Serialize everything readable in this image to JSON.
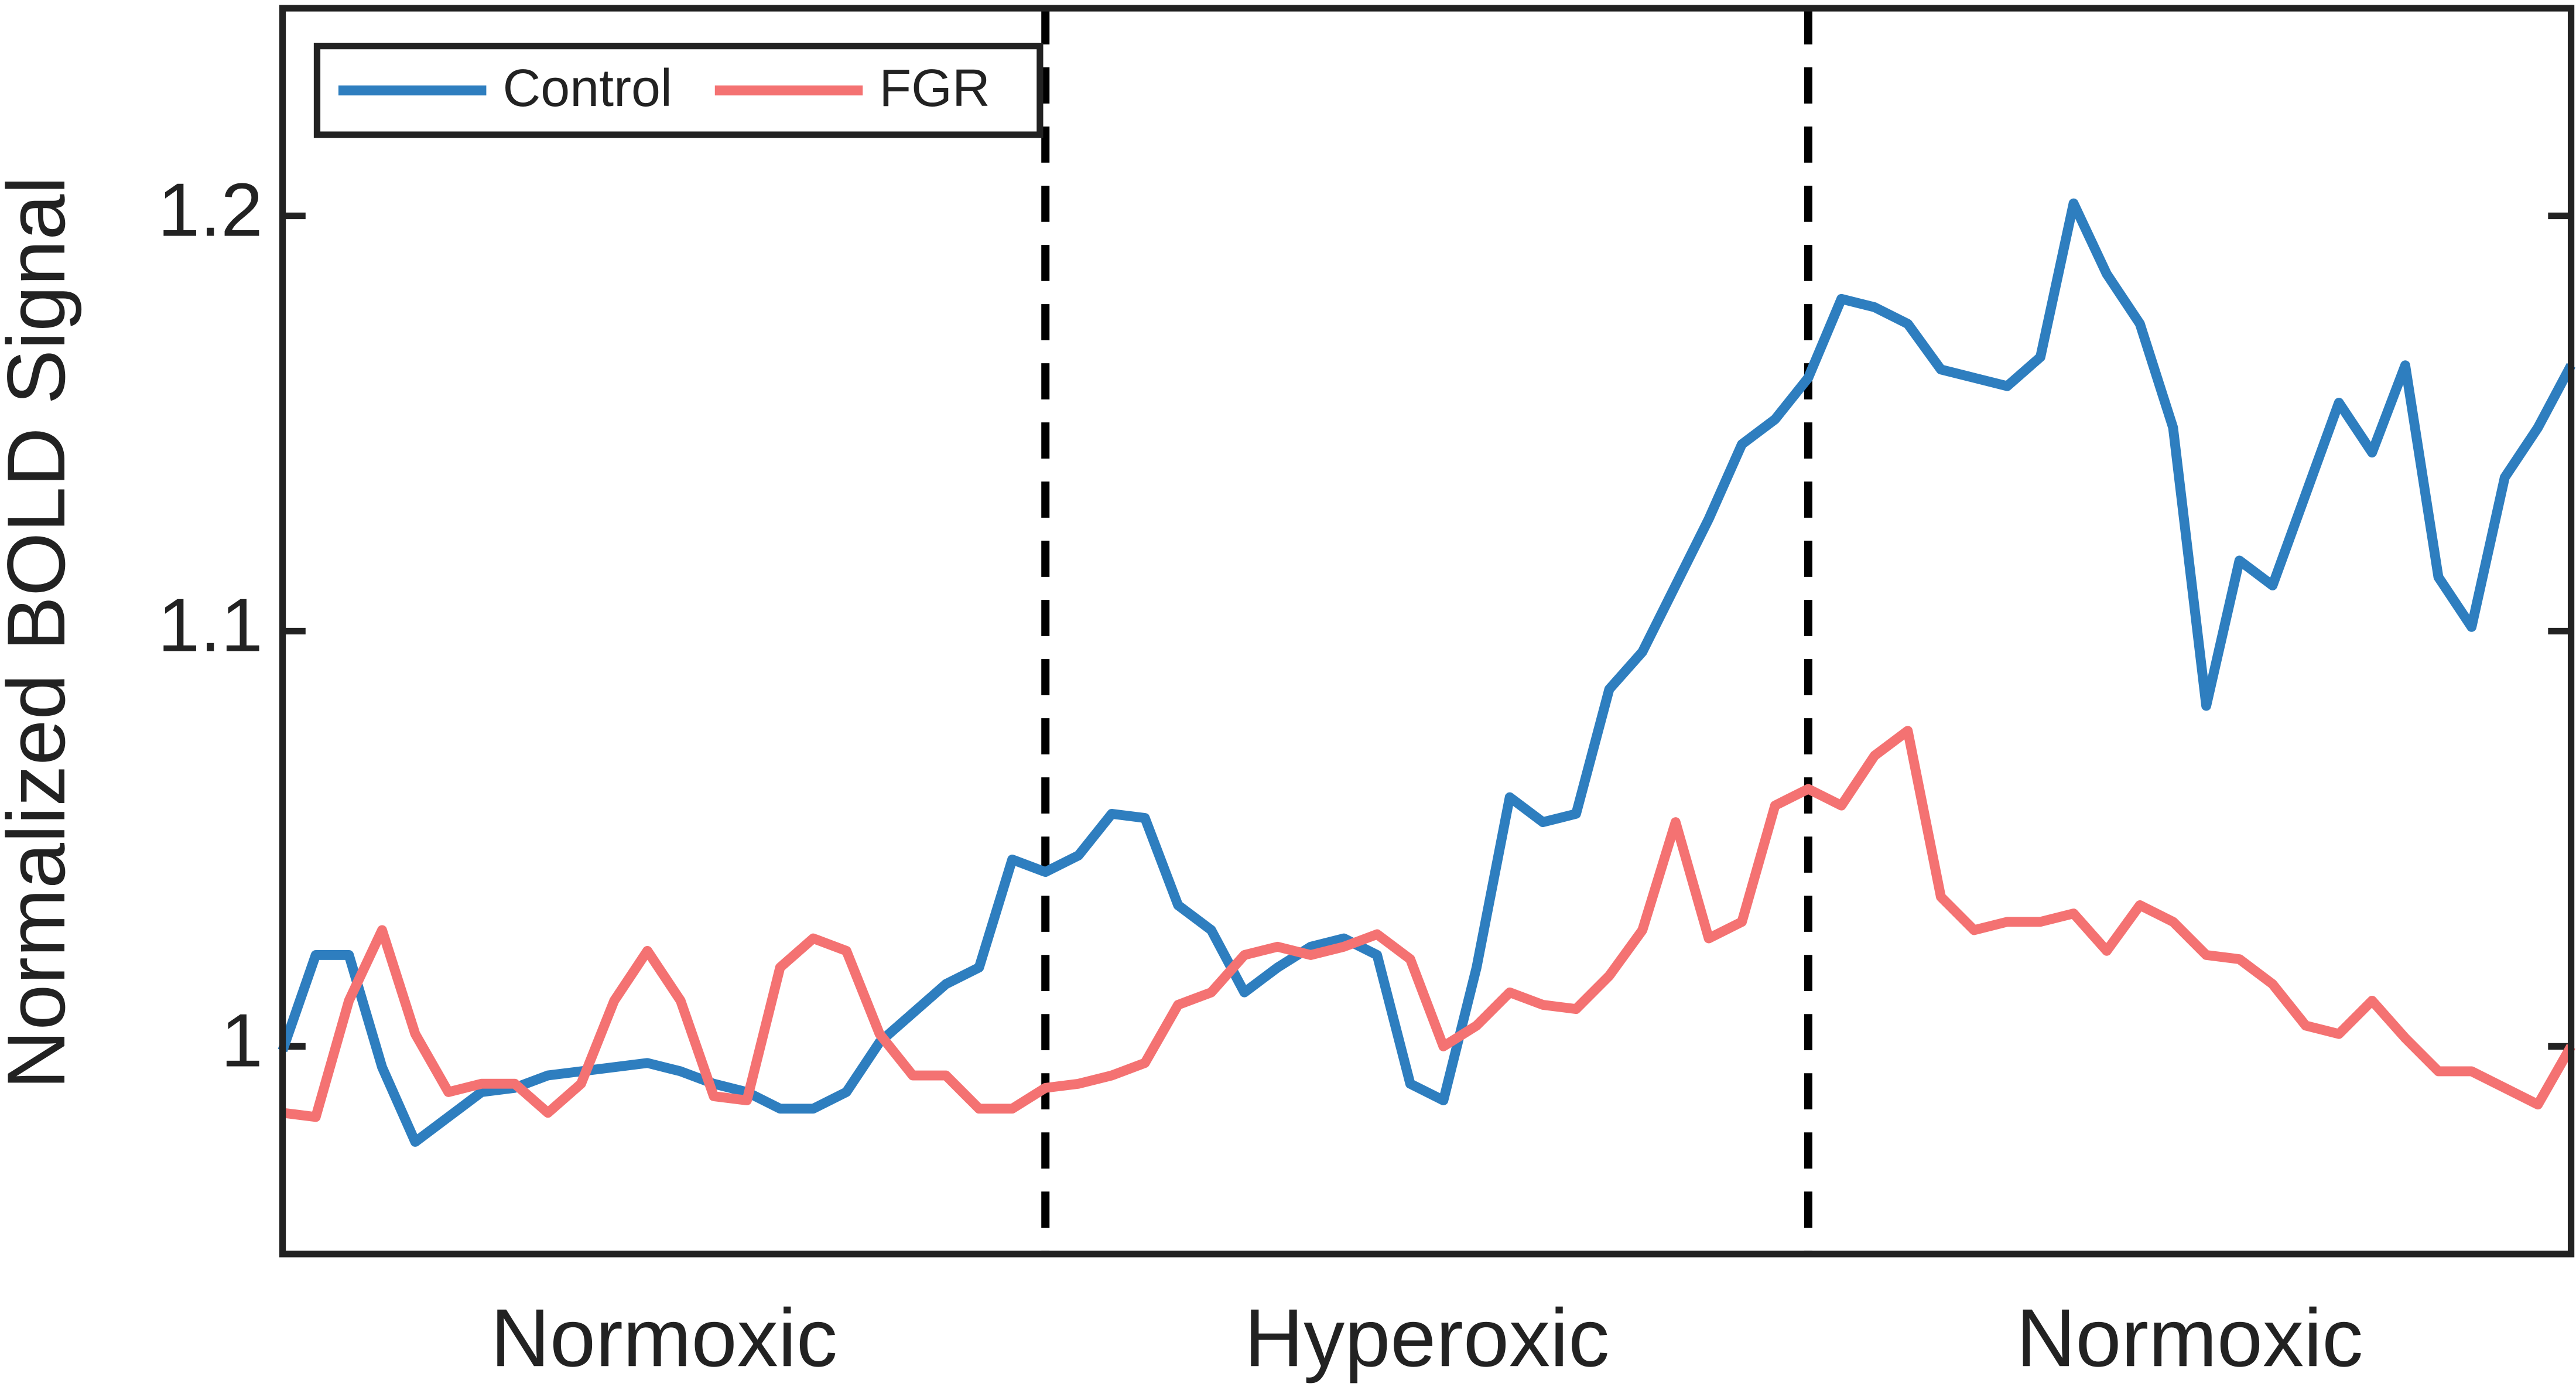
{
  "chart_data": {
    "type": "line",
    "y_label": "Normalized BOLD Signal",
    "phases": [
      "Normoxic",
      "Hyperoxic",
      "Normoxic"
    ],
    "ylim": [
      0.95,
      1.25
    ],
    "yticks": [
      1,
      1.1,
      1.2
    ],
    "legend": "upper left",
    "series": [
      {
        "name": "Control",
        "color": "#2e7ebf",
        "values": [
          0.999,
          1.022,
          1.022,
          0.995,
          0.977,
          0.983,
          0.989,
          0.99,
          0.993,
          0.994,
          0.995,
          0.996,
          0.994,
          0.991,
          0.989,
          0.985,
          0.985,
          0.989,
          1.001,
          1.008,
          1.015,
          1.019,
          1.045,
          1.042,
          1.046,
          1.056,
          1.055,
          1.034,
          1.028,
          1.013,
          1.019,
          1.024,
          1.026,
          1.022,
          0.991,
          0.987,
          1.019,
          1.06,
          1.054,
          1.056,
          1.086,
          1.095,
          1.111,
          1.127,
          1.145,
          1.151,
          1.161,
          1.18,
          1.178,
          1.174,
          1.163,
          1.161,
          1.159,
          1.166,
          1.203,
          1.186,
          1.174,
          1.149,
          1.082,
          1.117,
          1.111,
          1.133,
          1.155,
          1.143,
          1.164,
          1.113,
          1.101,
          1.137,
          1.149,
          1.164
        ]
      },
      {
        "name": "FGR",
        "color": "#f47272",
        "values": [
          0.984,
          0.983,
          1.011,
          1.028,
          1.003,
          0.989,
          0.991,
          0.991,
          0.984,
          0.991,
          1.011,
          1.023,
          1.011,
          0.988,
          0.987,
          1.019,
          1.026,
          1.023,
          1.003,
          0.993,
          0.993,
          0.985,
          0.985,
          0.99,
          0.991,
          0.993,
          0.996,
          1.01,
          1.013,
          1.022,
          1.024,
          1.022,
          1.024,
          1.027,
          1.021,
          1.0,
          1.005,
          1.013,
          1.01,
          1.009,
          1.017,
          1.028,
          1.054,
          1.026,
          1.03,
          1.058,
          1.062,
          1.058,
          1.07,
          1.076,
          1.036,
          1.028,
          1.03,
          1.03,
          1.032,
          1.023,
          1.034,
          1.03,
          1.022,
          1.021,
          1.015,
          1.005,
          1.003,
          1.011,
          1.002,
          0.994,
          0.994,
          0.99,
          0.986,
          1.0
        ]
      }
    ]
  }
}
